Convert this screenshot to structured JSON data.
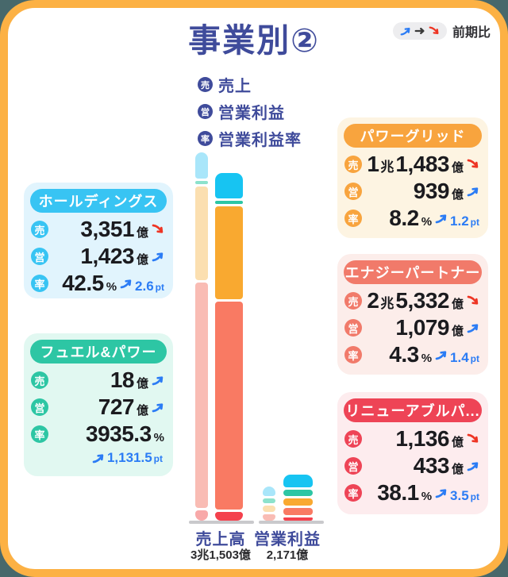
{
  "title": "事業別②",
  "compare_legend": {
    "label": "前期比",
    "arrows": [
      "up",
      "flat",
      "down"
    ]
  },
  "metric_legend": {
    "items": [
      {
        "icon": "売",
        "label": "売上"
      },
      {
        "icon": "営",
        "label": "営業利益"
      },
      {
        "icon": "率",
        "label": "営業利益率"
      }
    ]
  },
  "cards": [
    {
      "title": "ホールディングス",
      "accent_color": "#38c4f3",
      "bg_color": "#e1f4fd",
      "rows": [
        {
          "icon": "売",
          "num": "3,351",
          "unit": "億",
          "trend": "down"
        },
        {
          "icon": "営",
          "num": "1,423",
          "unit": "億",
          "trend": "up"
        },
        {
          "icon": "率",
          "num": "42.5",
          "unit": "%",
          "trend": "up",
          "delta": "2.6",
          "delta_unit": "pt"
        }
      ]
    },
    {
      "title": "フュエル&パワー",
      "accent_color": "#2dc6a4",
      "bg_color": "#e1f8f1",
      "rows": [
        {
          "icon": "売",
          "num": "18",
          "unit": "億",
          "trend": "up"
        },
        {
          "icon": "営",
          "num": "727",
          "unit": "億",
          "trend": "up"
        },
        {
          "icon": "率",
          "num": "3935.3",
          "unit": "%"
        }
      ],
      "delta_row": {
        "trend": "up",
        "delta": "1,131.5",
        "delta_unit": "pt"
      }
    },
    {
      "title": "パワーグリッド",
      "accent_color": "#f8a43e",
      "bg_color": "#fdf4e2",
      "rows": [
        {
          "icon": "売",
          "num_pre": "1",
          "unit_pre": "兆",
          "num": "1,483",
          "unit": "億",
          "trend": "down"
        },
        {
          "icon": "営",
          "num": "939",
          "unit": "億",
          "trend": "up"
        },
        {
          "icon": "率",
          "num": "8.2",
          "unit": "%",
          "trend": "up",
          "delta": "1.2",
          "delta_unit": "pt"
        }
      ]
    },
    {
      "title": "エナジーパートナー",
      "accent_color": "#f17a6a",
      "bg_color": "#fcedea",
      "rows": [
        {
          "icon": "売",
          "num_pre": "2",
          "unit_pre": "兆",
          "num": "5,332",
          "unit": "億",
          "trend": "down"
        },
        {
          "icon": "営",
          "num": "1,079",
          "unit": "億",
          "trend": "up"
        },
        {
          "icon": "率",
          "num": "4.3",
          "unit": "%",
          "trend": "up",
          "delta": "1.4",
          "delta_unit": "pt"
        }
      ]
    },
    {
      "title": "リニューアブルパ...",
      "accent_color": "#ee4456",
      "bg_color": "#fdecee",
      "rows": [
        {
          "icon": "売",
          "num": "1,136",
          "unit": "億",
          "trend": "down"
        },
        {
          "icon": "営",
          "num": "433",
          "unit": "億",
          "trend": "up"
        },
        {
          "icon": "率",
          "num": "38.1",
          "unit": "%",
          "trend": "up",
          "delta": "3.5",
          "delta_unit": "pt"
        }
      ]
    }
  ],
  "chart_data": {
    "type": "bar",
    "stacked": true,
    "grid": false,
    "legend_position": "none",
    "categories": [
      "売上高",
      "営業利益"
    ],
    "category_totals": [
      "3兆1,503億",
      "2,171億"
    ],
    "unit": "億",
    "has_previous_period_bars": true,
    "series": [
      {
        "name": "ホールディングス",
        "color": "#17c4f2",
        "pale_color": "#a9e6fa",
        "values": [
          3351,
          1423
        ]
      },
      {
        "name": "フュエル&パワー",
        "color": "#2dc6a4",
        "pale_color": "#8ce2cc",
        "values": [
          18,
          727
        ]
      },
      {
        "name": "パワーグリッド",
        "color": "#f9a930",
        "pale_color": "#fbdfb0",
        "values": [
          11483,
          939
        ]
      },
      {
        "name": "エナジーパートナー",
        "color": "#f97a63",
        "pale_color": "#f9bcb4",
        "values": [
          25332,
          1079
        ]
      },
      {
        "name": "リニューアブルパ...",
        "color": "#f4414d",
        "pale_color": "#f8a9a9",
        "values": [
          1136,
          433
        ]
      }
    ],
    "render_heights": {
      "groups": [
        {
          "prev": [
            33,
            4,
            118,
            284,
            13
          ],
          "curr": [
            32,
            4,
            117,
            262,
            11
          ]
        },
        {
          "prev": [
            12,
            6,
            8,
            8,
            0
          ],
          "curr": [
            16,
            8,
            9,
            9,
            4
          ]
        }
      ]
    }
  }
}
